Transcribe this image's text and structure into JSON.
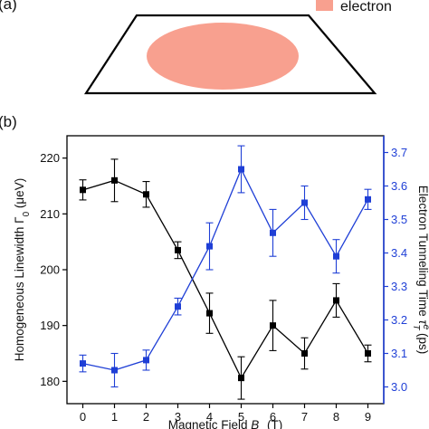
{
  "panel_a": {
    "label": "(a)",
    "legend_label": "electron",
    "legend_color": "#f8a08f",
    "ellipse_color": "#f8a08f"
  },
  "chart_data": {
    "type": "line",
    "panel_label": "(b)",
    "title": "",
    "xlabel": "Magnetic Field B_z (T)",
    "xlabel_parts": {
      "main": "Magnetic Field ",
      "symbol": "B",
      "subscript": "z",
      "unit": " (T)"
    },
    "ylabel_left": "Homogeneous Linewidth Γ0 (μeV)",
    "ylabel_left_parts": {
      "main": "Homogeneous Linewidth Γ",
      "subscript": "0",
      "unit": " (μeV)"
    },
    "ylabel_right": "Electron Tunneling Time τT^e (ps)",
    "ylabel_right_parts": {
      "main": "Electron Tunneling Time ",
      "symbol": "τ",
      "subscript": "T",
      "superscript": "e",
      "unit": " (ps)"
    },
    "x": [
      0,
      1,
      2,
      3,
      4,
      5,
      6,
      7,
      8,
      9
    ],
    "xlim": [
      -0.5,
      9.5
    ],
    "xticks": [
      "0",
      "1",
      "2",
      "3",
      "4",
      "5",
      "6",
      "7",
      "8",
      "9"
    ],
    "ylim_left": [
      176,
      224
    ],
    "yticks_left": [
      "180",
      "190",
      "200",
      "210",
      "220"
    ],
    "ylim_right": [
      2.95,
      3.75
    ],
    "yticks_right": [
      "3.0",
      "3.1",
      "3.2",
      "3.3",
      "3.4",
      "3.5",
      "3.6",
      "3.7"
    ],
    "grid": false,
    "series": [
      {
        "axis": "left",
        "color": "#000000",
        "marker": "square",
        "values": [
          214.3,
          216.0,
          213.5,
          203.5,
          192.2,
          180.6,
          190.0,
          185.0,
          194.5,
          185.0
        ],
        "errors": [
          1.8,
          3.8,
          2.3,
          1.5,
          3.6,
          3.8,
          4.5,
          2.8,
          3.0,
          1.5
        ]
      },
      {
        "axis": "right",
        "color": "#1f3fd6",
        "marker": "square",
        "values": [
          3.07,
          3.05,
          3.08,
          3.24,
          3.42,
          3.65,
          3.46,
          3.55,
          3.39,
          3.56
        ],
        "errors": [
          0.025,
          0.05,
          0.03,
          0.025,
          0.07,
          0.07,
          0.07,
          0.05,
          0.05,
          0.03
        ]
      }
    ]
  }
}
